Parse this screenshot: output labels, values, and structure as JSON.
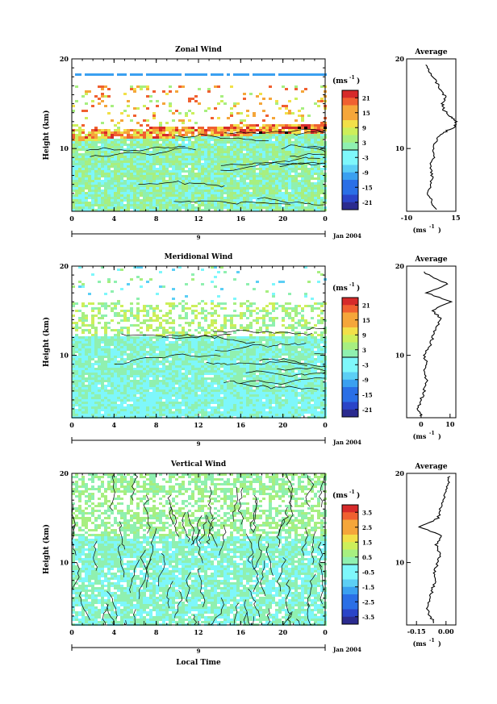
{
  "figure": {
    "date_label": "Jan 2004",
    "x_axis_label": "Local Time",
    "average_title": "Average",
    "y_axis_label": "Height (km)",
    "colorbar_unit": "(ms",
    "colorbar_unit_sup": "-1",
    "avg_unit": "(ms",
    "avg_unit_sup": "-1",
    "day_marker": "9"
  },
  "chart_data": [
    {
      "type": "heatmap",
      "title": "Zonal Wind",
      "xlabel": "",
      "ylabel": "Height (km)",
      "xlim": [
        0,
        24
      ],
      "ylim": [
        3,
        20
      ],
      "x_ticks": [
        "0",
        "4",
        "8",
        "12",
        "16",
        "20",
        "0"
      ],
      "y_ticks": [
        "10",
        "20"
      ],
      "colorbar_ticks": [
        "21",
        "15",
        "9",
        "3",
        "-3",
        "-9",
        "-15",
        "-21"
      ],
      "colorbar_range": [
        -24,
        24
      ],
      "profile": {
        "title": "Average",
        "xlim": [
          -10,
          15
        ],
        "x_ticks": [
          "-10",
          "15"
        ],
        "heights": [
          3.2,
          4,
          5,
          6,
          7,
          8,
          9,
          10,
          11,
          11.8,
          12.4,
          13,
          13.6,
          14.3,
          15,
          15.8,
          16.5,
          17.5,
          18.5,
          19.5
        ],
        "values": [
          5,
          3,
          1,
          2,
          3,
          2,
          4,
          4,
          5,
          9,
          14,
          15,
          12,
          9,
          8,
          10,
          7,
          5,
          2,
          -1
        ]
      }
    },
    {
      "type": "heatmap",
      "title": "Meridional Wind",
      "xlabel": "",
      "ylabel": "Height (km)",
      "xlim": [
        0,
        24
      ],
      "ylim": [
        3,
        20
      ],
      "x_ticks": [
        "0",
        "4",
        "8",
        "12",
        "16",
        "20",
        "0"
      ],
      "y_ticks": [
        "10",
        "20"
      ],
      "colorbar_ticks": [
        "21",
        "15",
        "9",
        "3",
        "-3",
        "-9",
        "-15",
        "-21"
      ],
      "colorbar_range": [
        -24,
        24
      ],
      "profile": {
        "title": "Average",
        "xlim": [
          -5,
          12
        ],
        "x_ticks": [
          "0",
          "10"
        ],
        "heights": [
          3.2,
          4,
          5,
          6,
          7,
          8,
          9,
          10,
          11,
          12,
          13,
          14,
          15,
          16,
          17,
          18,
          18.8,
          19.5
        ],
        "values": [
          0,
          -1,
          0,
          1,
          2,
          1,
          2,
          1,
          3,
          4,
          5,
          7,
          4,
          10,
          2,
          9,
          4,
          0
        ]
      }
    },
    {
      "type": "heatmap",
      "title": "Vertical Wind",
      "xlabel": "Local Time",
      "ylabel": "Height (km)",
      "xlim": [
        0,
        24
      ],
      "ylim": [
        3,
        20
      ],
      "x_ticks": [
        "0",
        "4",
        "8",
        "12",
        "16",
        "20",
        "0"
      ],
      "y_ticks": [
        "10",
        "20"
      ],
      "colorbar_ticks": [
        "3.5",
        "2.5",
        "1.5",
        "0.5",
        "-0.5",
        "-1.5",
        "-2.5",
        "-3.5"
      ],
      "colorbar_range": [
        -4,
        4
      ],
      "profile": {
        "title": "Average",
        "xlim": [
          -0.2,
          0.05
        ],
        "x_ticks": [
          "-0.15",
          "0.00"
        ],
        "heights": [
          3.2,
          4,
          5,
          6,
          7,
          8,
          9,
          10,
          11,
          12,
          13,
          14,
          15,
          16,
          17,
          18,
          19,
          19.8
        ],
        "values": [
          -0.06,
          -0.08,
          -0.1,
          -0.08,
          -0.07,
          -0.05,
          -0.06,
          -0.04,
          -0.03,
          -0.05,
          -0.02,
          -0.13,
          -0.04,
          -0.03,
          -0.01,
          0.0,
          0.01,
          0.02
        ]
      }
    }
  ]
}
